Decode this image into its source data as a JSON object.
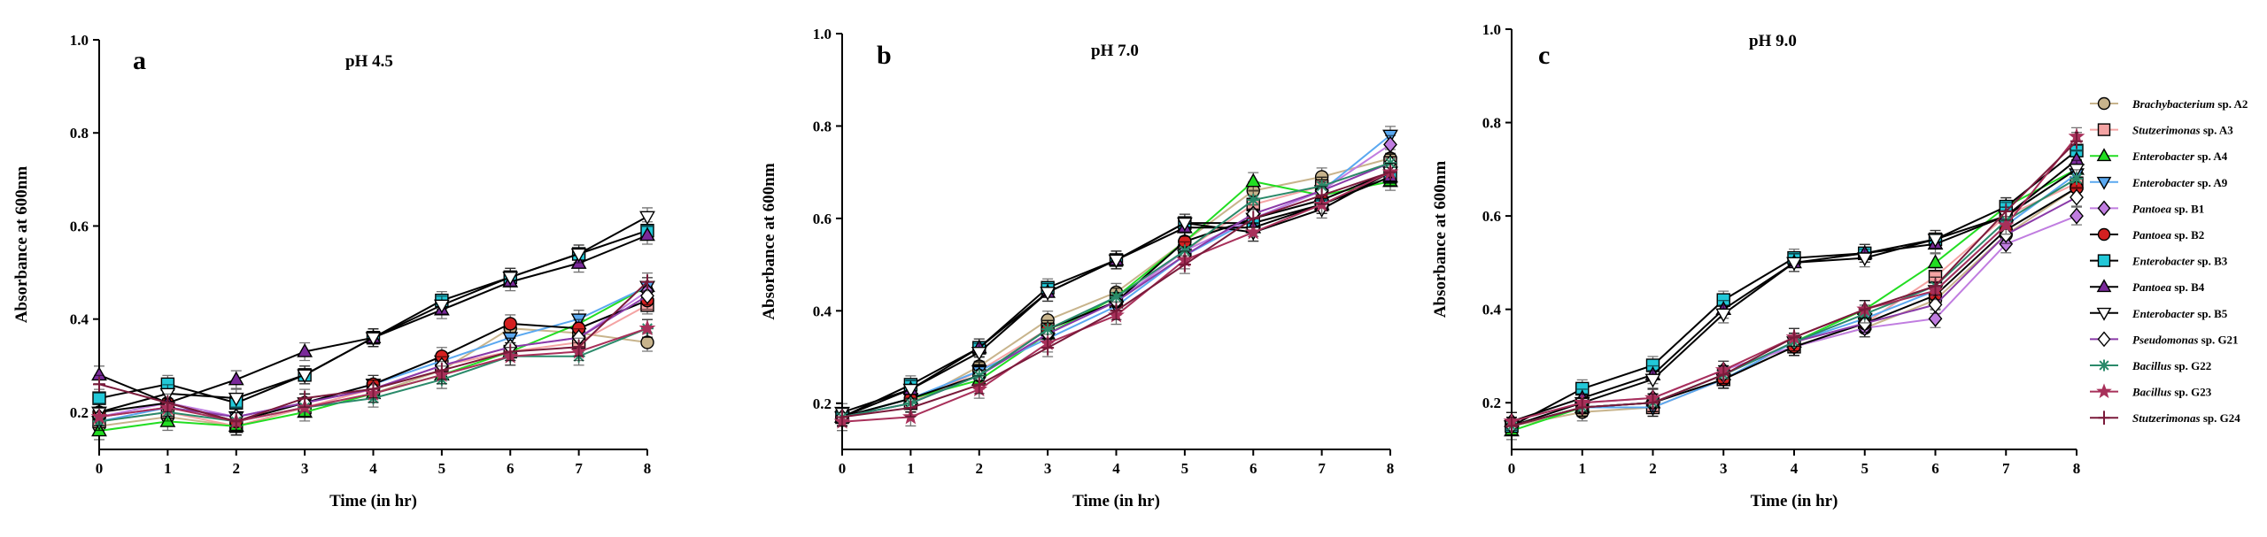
{
  "chart_data": [
    {
      "type": "line",
      "panel_label": "a",
      "title": "pH 4.5",
      "xlabel": "Time (in hr)",
      "ylabel": "Absorbance at 600nm",
      "x": [
        0,
        1,
        2,
        3,
        4,
        5,
        6,
        7,
        8
      ],
      "xlim": [
        0,
        8
      ],
      "ylim": [
        0.12,
        1.0
      ],
      "yticks": [
        0.2,
        0.4,
        0.6,
        0.8,
        1.0
      ],
      "ytick_labels": [
        "0.2",
        "0.4",
        "0.6",
        "0.8",
        "1.0"
      ],
      "grid": false,
      "series": [
        {
          "name": "Brachybacterium sp. A2",
          "values": [
            0.17,
            0.19,
            0.17,
            0.21,
            0.24,
            0.29,
            0.38,
            0.37,
            0.35
          ]
        },
        {
          "name": "Stutzerimonas sp. A3",
          "values": [
            0.18,
            0.2,
            0.17,
            0.21,
            0.25,
            0.3,
            0.33,
            0.35,
            0.43
          ]
        },
        {
          "name": "Enterobacter sp. A4",
          "values": [
            0.16,
            0.18,
            0.17,
            0.2,
            0.24,
            0.28,
            0.33,
            0.39,
            0.47
          ]
        },
        {
          "name": "Enterobacter sp. A9",
          "values": [
            0.18,
            0.21,
            0.19,
            0.22,
            0.26,
            0.31,
            0.36,
            0.4,
            0.47
          ]
        },
        {
          "name": "Pantoea sp. B1",
          "values": [
            0.19,
            0.22,
            0.19,
            0.22,
            0.25,
            0.3,
            0.34,
            0.36,
            0.46
          ]
        },
        {
          "name": "Pantoea sp. B2",
          "values": [
            0.2,
            0.22,
            0.18,
            0.22,
            0.26,
            0.32,
            0.39,
            0.38,
            0.44
          ]
        },
        {
          "name": "Enterobacter sp. B3",
          "values": [
            0.23,
            0.26,
            0.22,
            0.28,
            0.36,
            0.44,
            0.49,
            0.54,
            0.59
          ]
        },
        {
          "name": "Pantoea sp. B4",
          "values": [
            0.28,
            0.22,
            0.27,
            0.33,
            0.36,
            0.42,
            0.48,
            0.52,
            0.58
          ]
        },
        {
          "name": "Enterobacter sp. B5",
          "values": [
            0.2,
            0.24,
            0.23,
            0.28,
            0.36,
            0.43,
            0.49,
            0.54,
            0.62
          ]
        },
        {
          "name": "Pseudomonas sp. G21",
          "values": [
            0.19,
            0.21,
            0.19,
            0.22,
            0.25,
            0.3,
            0.34,
            0.36,
            0.45
          ]
        },
        {
          "name": "Bacillus sp. G22",
          "values": [
            0.18,
            0.2,
            0.18,
            0.21,
            0.23,
            0.27,
            0.32,
            0.32,
            0.38
          ]
        },
        {
          "name": "Bacillus sp. G23",
          "values": [
            0.19,
            0.21,
            0.18,
            0.21,
            0.24,
            0.28,
            0.32,
            0.33,
            0.38
          ]
        },
        {
          "name": "Stutzerimonas sp. G24",
          "values": [
            0.26,
            0.22,
            0.18,
            0.23,
            0.25,
            0.29,
            0.33,
            0.34,
            0.48
          ]
        }
      ]
    },
    {
      "type": "line",
      "panel_label": "b",
      "title": "pH 7.0",
      "xlabel": "Time (in hr)",
      "ylabel": "Absorbance at 600nm",
      "x": [
        0,
        1,
        2,
        3,
        4,
        5,
        6,
        7,
        8
      ],
      "xlim": [
        0,
        8
      ],
      "ylim": [
        0.1,
        1.0
      ],
      "yticks": [
        0.2,
        0.4,
        0.6,
        0.8,
        1.0
      ],
      "ytick_labels": [
        "0.2",
        "0.4",
        "0.6",
        "0.8",
        "1.0"
      ],
      "grid": false,
      "series": [
        {
          "name": "Brachybacterium sp. A2",
          "values": [
            0.17,
            0.2,
            0.28,
            0.38,
            0.44,
            0.55,
            0.66,
            0.69,
            0.73
          ]
        },
        {
          "name": "Stutzerimonas sp. A3",
          "values": [
            0.17,
            0.2,
            0.27,
            0.36,
            0.42,
            0.53,
            0.63,
            0.67,
            0.72
          ]
        },
        {
          "name": "Enterobacter sp. A4",
          "values": [
            0.17,
            0.21,
            0.25,
            0.35,
            0.43,
            0.55,
            0.68,
            0.65,
            0.68
          ]
        },
        {
          "name": "Enterobacter sp. A9",
          "values": [
            0.17,
            0.21,
            0.27,
            0.34,
            0.41,
            0.52,
            0.6,
            0.66,
            0.78
          ]
        },
        {
          "name": "Pantoea sp. B1",
          "values": [
            0.17,
            0.2,
            0.26,
            0.35,
            0.42,
            0.53,
            0.6,
            0.66,
            0.76
          ]
        },
        {
          "name": "Pantoea sp. B2",
          "values": [
            0.17,
            0.21,
            0.26,
            0.36,
            0.42,
            0.55,
            0.6,
            0.64,
            0.7
          ]
        },
        {
          "name": "Enterobacter sp. B3",
          "values": [
            0.17,
            0.24,
            0.32,
            0.45,
            0.51,
            0.59,
            0.59,
            0.63,
            0.69
          ]
        },
        {
          "name": "Pantoea sp. B4",
          "values": [
            0.17,
            0.23,
            0.32,
            0.44,
            0.51,
            0.58,
            0.58,
            0.63,
            0.69
          ]
        },
        {
          "name": "Enterobacter sp. B5",
          "values": [
            0.18,
            0.23,
            0.31,
            0.44,
            0.51,
            0.59,
            0.57,
            0.62,
            0.7
          ]
        },
        {
          "name": "Pseudomonas sp. G21",
          "values": [
            0.17,
            0.2,
            0.26,
            0.35,
            0.42,
            0.52,
            0.61,
            0.66,
            0.72
          ]
        },
        {
          "name": "Bacillus sp. G22",
          "values": [
            0.17,
            0.2,
            0.26,
            0.36,
            0.43,
            0.53,
            0.64,
            0.67,
            0.72
          ]
        },
        {
          "name": "Bacillus sp. G23",
          "values": [
            0.16,
            0.17,
            0.23,
            0.33,
            0.39,
            0.51,
            0.57,
            0.63,
            0.7
          ]
        },
        {
          "name": "Stutzerimonas sp. G24",
          "values": [
            0.17,
            0.19,
            0.24,
            0.32,
            0.4,
            0.5,
            0.6,
            0.65,
            0.7
          ]
        }
      ]
    },
    {
      "type": "line",
      "panel_label": "c",
      "title": "pH 9.0",
      "xlabel": "Time (in hr)",
      "ylabel": "Absorbance at 600nm",
      "x": [
        0,
        1,
        2,
        3,
        4,
        5,
        6,
        7,
        8
      ],
      "xlim": [
        0,
        8
      ],
      "ylim": [
        0.1,
        1.0
      ],
      "yticks": [
        0.2,
        0.4,
        0.6,
        0.8,
        1.0
      ],
      "ytick_labels": [
        "0.2",
        "0.4",
        "0.6",
        "0.8",
        "1.0"
      ],
      "grid": false,
      "legend_position": "right",
      "series": [
        {
          "name": "Brachybacterium sp. A2",
          "values": [
            0.15,
            0.18,
            0.19,
            0.25,
            0.32,
            0.36,
            0.42,
            0.56,
            0.66
          ]
        },
        {
          "name": "Stutzerimonas sp. A3",
          "values": [
            0.15,
            0.19,
            0.19,
            0.25,
            0.32,
            0.37,
            0.47,
            0.6,
            0.67
          ]
        },
        {
          "name": "Enterobacter sp. A4",
          "values": [
            0.14,
            0.19,
            0.2,
            0.26,
            0.33,
            0.4,
            0.5,
            0.62,
            0.7
          ]
        },
        {
          "name": "Enterobacter sp. A9",
          "values": [
            0.15,
            0.19,
            0.19,
            0.25,
            0.33,
            0.38,
            0.44,
            0.58,
            0.69
          ]
        },
        {
          "name": "Pantoea sp. B1",
          "values": [
            0.16,
            0.2,
            0.21,
            0.27,
            0.32,
            0.36,
            0.38,
            0.54,
            0.6
          ]
        },
        {
          "name": "Pantoea sp. B2",
          "values": [
            0.15,
            0.19,
            0.2,
            0.25,
            0.32,
            0.37,
            0.43,
            0.57,
            0.66
          ]
        },
        {
          "name": "Enterobacter sp. B3",
          "values": [
            0.15,
            0.23,
            0.28,
            0.42,
            0.51,
            0.52,
            0.55,
            0.62,
            0.74
          ]
        },
        {
          "name": "Pantoea sp. B4",
          "values": [
            0.16,
            0.21,
            0.26,
            0.4,
            0.5,
            0.52,
            0.54,
            0.6,
            0.72
          ]
        },
        {
          "name": "Enterobacter sp. B5",
          "values": [
            0.15,
            0.2,
            0.25,
            0.39,
            0.5,
            0.51,
            0.55,
            0.6,
            0.7
          ]
        },
        {
          "name": "Pseudomonas sp. G21",
          "values": [
            0.15,
            0.19,
            0.2,
            0.26,
            0.33,
            0.37,
            0.41,
            0.56,
            0.64
          ]
        },
        {
          "name": "Bacillus sp. G22",
          "values": [
            0.15,
            0.19,
            0.2,
            0.26,
            0.33,
            0.39,
            0.45,
            0.59,
            0.68
          ]
        },
        {
          "name": "Bacillus sp. G23",
          "values": [
            0.16,
            0.2,
            0.21,
            0.27,
            0.34,
            0.4,
            0.44,
            0.58,
            0.77
          ]
        },
        {
          "name": "Stutzerimonas sp. G24",
          "values": [
            0.15,
            0.19,
            0.2,
            0.26,
            0.34,
            0.4,
            0.45,
            0.61,
            0.76
          ]
        }
      ]
    }
  ],
  "legend": [
    {
      "genus": "Brachybacterium",
      "rest": " sp. A2",
      "color": "#c8b48c",
      "marker": "circle",
      "line": "#c8b48c"
    },
    {
      "genus": "Stutzerimonas",
      "rest": " sp. A3",
      "color": "#f4a3a3",
      "marker": "square",
      "line": "#f4a3a3"
    },
    {
      "genus": "Enterobacter",
      "rest": " sp. A4",
      "color": "#22dd22",
      "marker": "triangle-up",
      "line": "#22dd22"
    },
    {
      "genus": "Enterobacter",
      "rest": " sp. A9",
      "color": "#5aa8f0",
      "marker": "triangle-down",
      "line": "#5aa8f0"
    },
    {
      "genus": "Pantoea",
      "rest": " sp. B1",
      "color": "#c07de0",
      "marker": "diamond",
      "line": "#c07de0"
    },
    {
      "genus": "Pantoea",
      "rest": "  sp.  B2",
      "color": "#d42020",
      "marker": "circle",
      "line": "#000000"
    },
    {
      "genus": "Enterobacter",
      "rest": " sp. B3",
      "color": "#22c8d8",
      "marker": "square",
      "line": "#000000"
    },
    {
      "genus": "Pantoea",
      "rest": " sp. B4",
      "color": "#7a2a9a",
      "marker": "triangle-up",
      "line": "#000000"
    },
    {
      "genus": "Enterobacter",
      "rest": " sp. B5",
      "color": "#ffffff",
      "marker": "triangle-down",
      "line": "#000000"
    },
    {
      "genus": "Pseudomonas",
      "rest": " sp.  G21",
      "color": "#ffffff",
      "marker": "diamond",
      "line": "#8a3aa8"
    },
    {
      "genus": "Bacillus",
      "rest": " sp. G22",
      "color": "#2a8a6a",
      "marker": "asterisk",
      "line": "#2a8a6a"
    },
    {
      "genus": "Bacillus",
      "rest": " sp. G23",
      "color": "#a8305a",
      "marker": "star",
      "line": "#a8305a"
    },
    {
      "genus": "Stutzerimonas",
      "rest": " sp. G24",
      "color": "#7a1a3a",
      "marker": "plus",
      "line": "#7a1a3a"
    }
  ]
}
